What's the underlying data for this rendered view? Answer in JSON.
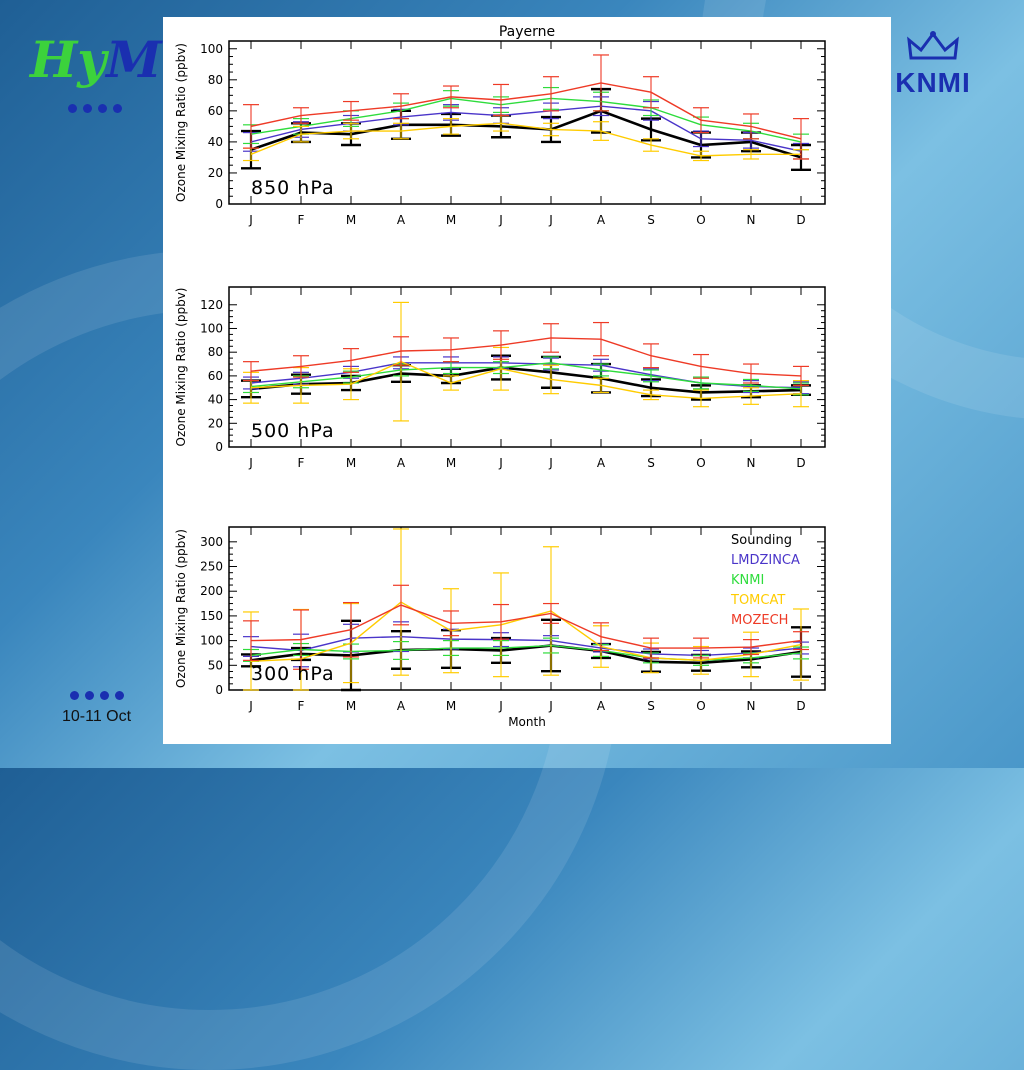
{
  "slide": {
    "logo_left": "HyMn",
    "footer_date": "10-11 Oct",
    "logo_right": "KNMI"
  },
  "chart_data": [
    {
      "type": "line",
      "title": "Payerne",
      "panel_label": "850 hPa",
      "xlabel": "",
      "ylabel": "Ozone Mixing Ratio (ppbv)",
      "categories": [
        "J",
        "F",
        "M",
        "A",
        "M",
        "J",
        "J",
        "A",
        "S",
        "O",
        "N",
        "D"
      ],
      "ylim": [
        0,
        105
      ],
      "yticks": [
        0,
        20,
        40,
        60,
        80,
        100
      ],
      "series": [
        {
          "name": "Sounding",
          "color": "#000000",
          "values": [
            35,
            46,
            45,
            51,
            51,
            50,
            48,
            60,
            48,
            38,
            40,
            30
          ],
          "err": [
            12,
            6,
            7,
            9,
            7,
            7,
            8,
            14,
            7,
            8,
            6,
            8
          ]
        },
        {
          "name": "LMDZINCA",
          "color": "#4a35c9",
          "values": [
            40,
            48,
            52,
            56,
            59,
            57,
            60,
            63,
            60,
            42,
            41,
            34
          ],
          "err": [
            6,
            5,
            5,
            5,
            5,
            5,
            5,
            6,
            6,
            5,
            5,
            5
          ]
        },
        {
          "name": "KNMI",
          "color": "#2edc3c",
          "values": [
            45,
            50,
            55,
            60,
            68,
            64,
            68,
            66,
            62,
            51,
            47,
            40
          ],
          "err": [
            6,
            5,
            5,
            5,
            5,
            5,
            7,
            6,
            5,
            5,
            5,
            5
          ]
        },
        {
          "name": "TOMCAT",
          "color": "#ffcc00",
          "values": [
            32,
            45,
            47,
            47,
            50,
            52,
            48,
            47,
            38,
            31,
            32,
            32
          ],
          "err": [
            4,
            5,
            5,
            5,
            5,
            5,
            4,
            6,
            4,
            3,
            3,
            3
          ]
        },
        {
          "name": "MOZECH",
          "color": "#ee3a26",
          "values": [
            50,
            57,
            60,
            63,
            69,
            67,
            71,
            78,
            72,
            54,
            50,
            42
          ],
          "err": [
            14,
            5,
            6,
            8,
            7,
            10,
            11,
            18,
            10,
            8,
            8,
            13
          ]
        }
      ]
    },
    {
      "type": "line",
      "title": "",
      "panel_label": "500 hPa",
      "xlabel": "",
      "ylabel": "Ozone Mixing Ratio (ppbv)",
      "categories": [
        "J",
        "F",
        "M",
        "A",
        "M",
        "J",
        "J",
        "A",
        "S",
        "O",
        "N",
        "D"
      ],
      "ylim": [
        0,
        135
      ],
      "yticks": [
        0,
        20,
        40,
        60,
        80,
        100,
        120
      ],
      "series": [
        {
          "name": "Sounding",
          "color": "#000000",
          "values": [
            49,
            53,
            54,
            62,
            60,
            67,
            63,
            58,
            50,
            46,
            47,
            48
          ],
          "err": [
            7,
            8,
            6,
            7,
            6,
            10,
            13,
            12,
            7,
            6,
            5,
            4
          ]
        },
        {
          "name": "LMDZINCA",
          "color": "#4a35c9",
          "values": [
            54,
            58,
            63,
            71,
            71,
            71,
            70,
            69,
            61,
            54,
            51,
            50
          ],
          "err": [
            5,
            5,
            5,
            5,
            5,
            5,
            5,
            5,
            5,
            5,
            5,
            5
          ]
        },
        {
          "name": "KNMI",
          "color": "#2edc3c",
          "values": [
            51,
            55,
            59,
            65,
            67,
            67,
            71,
            65,
            60,
            54,
            52,
            49
          ],
          "err": [
            5,
            5,
            5,
            5,
            5,
            5,
            5,
            5,
            5,
            5,
            5,
            5
          ]
        },
        {
          "name": "TOMCAT",
          "color": "#ffcc00",
          "values": [
            50,
            52,
            53,
            72,
            54,
            66,
            57,
            52,
            44,
            41,
            43,
            45
          ],
          "err": [
            13,
            15,
            13,
            50,
            6,
            18,
            12,
            6,
            4,
            7,
            7,
            11
          ]
        },
        {
          "name": "MOZECH",
          "color": "#ee3a26",
          "values": [
            64,
            68,
            73,
            81,
            82,
            86,
            92,
            91,
            77,
            68,
            62,
            60
          ],
          "err": [
            8,
            9,
            10,
            12,
            10,
            12,
            12,
            14,
            10,
            10,
            8,
            8
          ]
        }
      ]
    },
    {
      "type": "line",
      "title": "",
      "panel_label": "300 hPa",
      "xlabel": "Month",
      "ylabel": "Ozone Mixing Ratio (ppbv)",
      "categories": [
        "J",
        "F",
        "M",
        "A",
        "M",
        "J",
        "J",
        "A",
        "S",
        "O",
        "N",
        "D"
      ],
      "ylim": [
        0,
        330
      ],
      "yticks": [
        0,
        50,
        100,
        150,
        200,
        250,
        300
      ],
      "series": [
        {
          "name": "Sounding",
          "color": "#000000",
          "values": [
            60,
            73,
            70,
            81,
            83,
            80,
            90,
            79,
            57,
            55,
            62,
            77
          ],
          "err": [
            12,
            12,
            70,
            38,
            38,
            25,
            52,
            14,
            20,
            16,
            16,
            50
          ]
        },
        {
          "name": "LMDZINCA",
          "color": "#4a35c9",
          "values": [
            88,
            80,
            105,
            108,
            103,
            102,
            100,
            85,
            73,
            70,
            75,
            85
          ],
          "err": [
            20,
            33,
            28,
            30,
            20,
            14,
            10,
            8,
            10,
            10,
            10,
            12
          ]
        },
        {
          "name": "KNMI",
          "color": "#2edc3c",
          "values": [
            70,
            82,
            78,
            80,
            85,
            85,
            90,
            80,
            65,
            60,
            65,
            75
          ],
          "err": [
            12,
            12,
            15,
            18,
            15,
            15,
            15,
            12,
            10,
            10,
            10,
            12
          ]
        },
        {
          "name": "TOMCAT",
          "color": "#ffcc00",
          "values": [
            58,
            63,
            95,
            178,
            120,
            132,
            160,
            88,
            65,
            60,
            72,
            92
          ],
          "err": [
            100,
            100,
            80,
            148,
            85,
            105,
            130,
            42,
            30,
            28,
            45,
            72
          ]
        },
        {
          "name": "MOZECH",
          "color": "#ee3a26",
          "values": [
            100,
            102,
            122,
            172,
            135,
            138,
            155,
            108,
            85,
            85,
            87,
            100
          ],
          "err": [
            40,
            60,
            55,
            40,
            25,
            35,
            20,
            28,
            20,
            20,
            15,
            18
          ]
        }
      ],
      "legend": {
        "position": "top-right",
        "entries": [
          "Sounding",
          "LMDZINCA",
          "KNMI",
          "TOMCAT",
          "MOZECH"
        ]
      }
    }
  ]
}
